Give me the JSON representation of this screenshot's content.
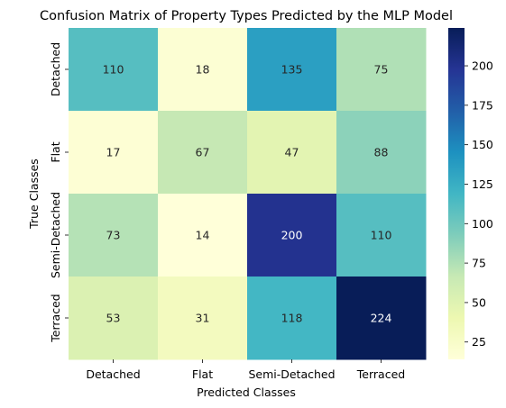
{
  "chart_data": {
    "type": "heatmap",
    "title": "Confusion Matrix of Property Types Predicted by the MLP Model",
    "xlabel": "Predicted Classes",
    "ylabel": "True Classes",
    "x_categories": [
      "Detached",
      "Flat",
      "Semi-Detached",
      "Terraced"
    ],
    "y_categories": [
      "Detached",
      "Flat",
      "Semi-Detached",
      "Terraced"
    ],
    "values": [
      [
        110,
        18,
        135,
        75
      ],
      [
        17,
        67,
        47,
        88
      ],
      [
        73,
        14,
        200,
        110
      ],
      [
        53,
        31,
        118,
        224
      ]
    ],
    "colormap": "YlGnBu",
    "colorbar": {
      "vmin": 14,
      "vmax": 224,
      "ticks": [
        25,
        50,
        75,
        100,
        125,
        150,
        175,
        200
      ]
    },
    "colors": {
      "colormap_stops": [
        "#ffffd9",
        "#edf8b1",
        "#c7e9b4",
        "#7fcdbb",
        "#41b6c4",
        "#1d91c0",
        "#225ea8",
        "#253494",
        "#081d58"
      ]
    }
  }
}
